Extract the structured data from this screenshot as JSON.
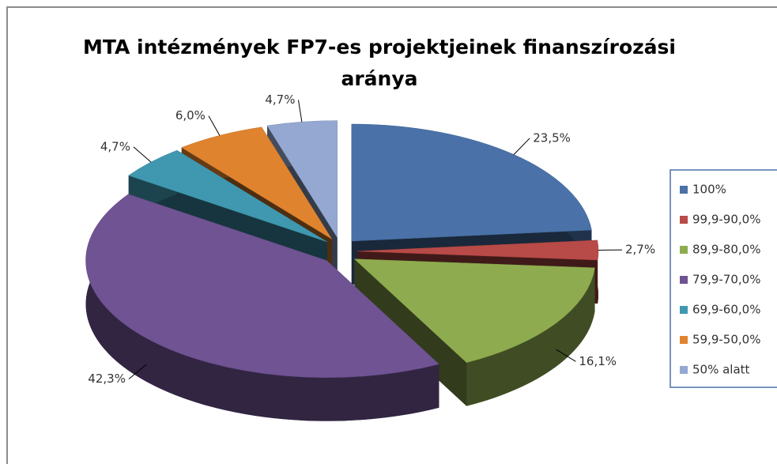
{
  "chart_data": {
    "type": "pie",
    "title": "MTA intézmények FP7-es projektjeinek finanszírozási aránya",
    "categories": [
      "100%",
      "99,9-90,0%",
      "89,9-80,0%",
      "79,9-70,0%",
      "69,9-60,0%",
      "59,9-50,0%",
      "50% alatt"
    ],
    "values": [
      23.5,
      2.7,
      16.1,
      42.3,
      4.7,
      6.0,
      4.7
    ],
    "value_labels": [
      "23,5%",
      "2,7%",
      "16,1%",
      "42,3%",
      "4,7%",
      "6,0%",
      "4,7%"
    ],
    "colors": [
      "#4a72a8",
      "#b84a47",
      "#8eac4f",
      "#6f5393",
      "#3f98b0",
      "#e0832f",
      "#94a8d1"
    ],
    "legend": "right"
  }
}
